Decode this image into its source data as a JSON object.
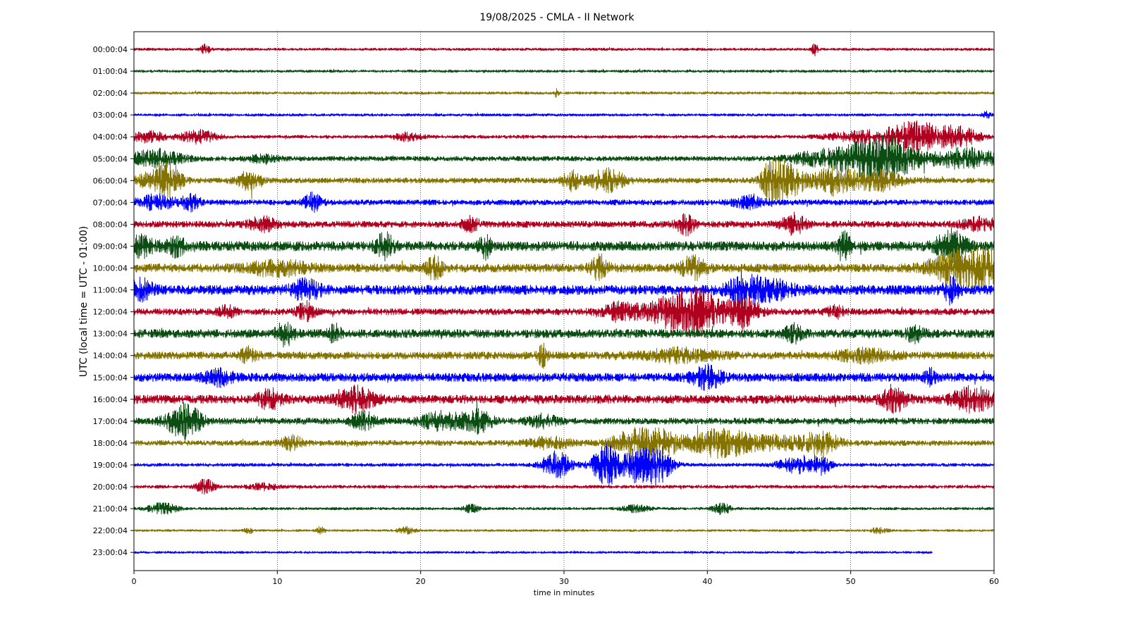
{
  "chart_data": {
    "type": "line",
    "title": "19/08/2025 - CMLA - II Network",
    "xlabel": "time in minutes",
    "ylabel": "UTC (local time = UTC - 01:00)",
    "xlim": [
      0,
      60
    ],
    "xticks": [
      0,
      10,
      20,
      30,
      40,
      50,
      60
    ],
    "grid": "vertical dotted at x ticks",
    "legend": "none",
    "color_cycle": [
      "#b00020",
      "#0b4d12",
      "#857300",
      "#0000ff"
    ],
    "series": [
      {
        "label": "00:00:04",
        "color": "#b00020",
        "amp": 0.12,
        "end": 60,
        "bursts": [
          [
            5,
            0.3,
            0.5
          ],
          [
            47.5,
            0.2,
            0.6
          ]
        ]
      },
      {
        "label": "01:00:04",
        "color": "#0b4d12",
        "amp": 0.12,
        "end": 60,
        "bursts": []
      },
      {
        "label": "02:00:04",
        "color": "#857300",
        "amp": 0.12,
        "end": 60,
        "bursts": [
          [
            29.5,
            0.15,
            0.4
          ]
        ]
      },
      {
        "label": "03:00:04",
        "color": "#0000ff",
        "amp": 0.12,
        "end": 60,
        "bursts": [
          [
            59.5,
            0.3,
            0.3
          ]
        ]
      },
      {
        "label": "04:00:04",
        "color": "#b00020",
        "amp": 0.15,
        "end": 60,
        "bursts": [
          [
            1,
            1.2,
            0.5
          ],
          [
            4.5,
            1.2,
            0.6
          ],
          [
            19,
            1.0,
            0.35
          ],
          [
            51,
            2.5,
            0.5
          ],
          [
            54.5,
            1.8,
            1.4
          ],
          [
            57.5,
            1.5,
            0.9
          ]
        ]
      },
      {
        "label": "05:00:04",
        "color": "#0b4d12",
        "amp": 0.22,
        "end": 60,
        "bursts": [
          [
            1.5,
            1.8,
            0.8
          ],
          [
            9,
            1.0,
            0.35
          ],
          [
            48.5,
            2.5,
            0.8
          ],
          [
            51.5,
            1.8,
            1.2
          ],
          [
            53,
            1.8,
            1.3
          ],
          [
            58,
            2.5,
            0.9
          ]
        ]
      },
      {
        "label": "06:00:04",
        "color": "#857300",
        "amp": 0.25,
        "end": 60,
        "bursts": [
          [
            1.5,
            1.2,
            0.8
          ],
          [
            2.5,
            0.8,
            1.3
          ],
          [
            8,
            0.8,
            0.8
          ],
          [
            30.5,
            0.6,
            0.9
          ],
          [
            33,
            1.2,
            1.0
          ],
          [
            44.5,
            0.6,
            1.4
          ],
          [
            45.5,
            1.4,
            1.5
          ],
          [
            49,
            1.4,
            1.3
          ],
          [
            52,
            1.5,
            0.9
          ]
        ]
      },
      {
        "label": "07:00:04",
        "color": "#0000ff",
        "amp": 0.25,
        "end": 60,
        "bursts": [
          [
            1.5,
            1.5,
            0.6
          ],
          [
            4,
            0.6,
            0.7
          ],
          [
            12.5,
            0.6,
            0.8
          ],
          [
            43,
            1.2,
            0.5
          ]
        ]
      },
      {
        "label": "08:00:04",
        "color": "#b00020",
        "amp": 0.3,
        "end": 60,
        "bursts": [
          [
            9,
            1.0,
            0.6
          ],
          [
            23.5,
            0.6,
            0.6
          ],
          [
            38.5,
            0.6,
            0.9
          ],
          [
            46,
            0.8,
            0.9
          ],
          [
            59,
            1.2,
            0.6
          ]
        ]
      },
      {
        "label": "09:00:04",
        "color": "#0b4d12",
        "amp": 0.45,
        "end": 60,
        "bursts": [
          [
            0.5,
            1.0,
            0.8
          ],
          [
            3,
            0.6,
            0.8
          ],
          [
            17.5,
            0.6,
            1.1
          ],
          [
            24.5,
            0.4,
            1.0
          ],
          [
            49.5,
            0.5,
            1.2
          ],
          [
            57,
            1.0,
            1.3
          ]
        ]
      },
      {
        "label": "10:00:04",
        "color": "#857300",
        "amp": 0.4,
        "end": 60,
        "bursts": [
          [
            10,
            2.0,
            0.6
          ],
          [
            21,
            0.6,
            0.9
          ],
          [
            32.5,
            0.6,
            1.0
          ],
          [
            39,
            0.8,
            1.0
          ],
          [
            57.5,
            1.8,
            1.8
          ],
          [
            59.5,
            1.0,
            1.1
          ]
        ]
      },
      {
        "label": "11:00:04",
        "color": "#0000ff",
        "amp": 0.45,
        "end": 60,
        "bursts": [
          [
            0.5,
            0.8,
            0.8
          ],
          [
            12,
            1.0,
            0.8
          ],
          [
            42.5,
            1.0,
            1.3
          ],
          [
            44.5,
            1.5,
            0.8
          ],
          [
            57,
            0.5,
            1.1
          ]
        ]
      },
      {
        "label": "12:00:04",
        "color": "#b00020",
        "amp": 0.3,
        "end": 60,
        "bursts": [
          [
            6.5,
            0.6,
            0.5
          ],
          [
            12,
            0.6,
            0.8
          ],
          [
            34,
            1.5,
            0.8
          ],
          [
            37.5,
            1.6,
            1.3
          ],
          [
            39.5,
            1.5,
            1.8
          ],
          [
            42.5,
            1.0,
            1.6
          ],
          [
            49,
            0.6,
            0.5
          ]
        ]
      },
      {
        "label": "13:00:04",
        "color": "#0b4d12",
        "amp": 0.4,
        "end": 60,
        "bursts": [
          [
            10.5,
            0.6,
            1.0
          ],
          [
            14,
            0.4,
            0.8
          ],
          [
            46,
            0.6,
            0.7
          ],
          [
            54.5,
            0.6,
            0.6
          ]
        ]
      },
      {
        "label": "14:00:04",
        "color": "#857300",
        "amp": 0.35,
        "end": 60,
        "bursts": [
          [
            8,
            0.6,
            0.6
          ],
          [
            28.5,
            0.3,
            1.0
          ],
          [
            38,
            2.5,
            0.5
          ],
          [
            51,
            2.0,
            0.5
          ]
        ]
      },
      {
        "label": "15:00:04",
        "color": "#0000ff",
        "amp": 0.4,
        "end": 60,
        "bursts": [
          [
            6,
            1.0,
            0.6
          ],
          [
            40,
            1.0,
            0.9
          ],
          [
            55.5,
            0.4,
            0.7
          ]
        ]
      },
      {
        "label": "16:00:04",
        "color": "#b00020",
        "amp": 0.4,
        "end": 60,
        "bursts": [
          [
            9.5,
            0.8,
            0.8
          ],
          [
            15.5,
            1.2,
            1.0
          ],
          [
            53,
            0.8,
            1.1
          ],
          [
            58.5,
            1.4,
            1.0
          ]
        ]
      },
      {
        "label": "17:00:04",
        "color": "#0b4d12",
        "amp": 0.3,
        "end": 60,
        "bursts": [
          [
            3.5,
            1.2,
            1.5
          ],
          [
            16,
            0.8,
            0.8
          ],
          [
            21.5,
            1.5,
            0.8
          ],
          [
            24,
            1.0,
            0.9
          ],
          [
            28.5,
            1.0,
            0.5
          ]
        ]
      },
      {
        "label": "18:00:04",
        "color": "#857300",
        "amp": 0.25,
        "end": 60,
        "bursts": [
          [
            11,
            0.8,
            0.6
          ],
          [
            29,
            1.5,
            0.5
          ],
          [
            35,
            1.5,
            1.3
          ],
          [
            37,
            1.5,
            0.9
          ],
          [
            41,
            2.0,
            1.3
          ],
          [
            45,
            2.0,
            0.6
          ],
          [
            48,
            1.2,
            1.0
          ]
        ]
      },
      {
        "label": "19:00:04",
        "color": "#0000ff",
        "amp": 0.15,
        "end": 60,
        "bursts": [
          [
            29.5,
            1.0,
            1.3
          ],
          [
            33,
            1.0,
            1.9
          ],
          [
            35,
            0.8,
            1.4
          ],
          [
            36.5,
            1.0,
            1.8
          ],
          [
            46.5,
            1.5,
            0.8
          ],
          [
            48,
            0.6,
            0.6
          ]
        ]
      },
      {
        "label": "20:00:04",
        "color": "#b00020",
        "amp": 0.15,
        "end": 60,
        "bursts": [
          [
            5,
            0.6,
            0.7
          ],
          [
            9,
            1.0,
            0.3
          ]
        ]
      },
      {
        "label": "21:00:04",
        "color": "#0b4d12",
        "amp": 0.12,
        "end": 60,
        "bursts": [
          [
            2,
            1.0,
            0.5
          ],
          [
            23.5,
            0.5,
            0.4
          ],
          [
            35,
            1.0,
            0.3
          ],
          [
            41,
            0.6,
            0.5
          ]
        ]
      },
      {
        "label": "22:00:04",
        "color": "#857300",
        "amp": 0.1,
        "end": 60,
        "bursts": [
          [
            8,
            0.3,
            0.3
          ],
          [
            13,
            0.3,
            0.4
          ],
          [
            19,
            0.6,
            0.3
          ],
          [
            52,
            0.6,
            0.25
          ]
        ]
      },
      {
        "label": "23:00:04",
        "color": "#0000ff",
        "amp": 0.1,
        "end": 55.7,
        "bursts": []
      }
    ]
  }
}
